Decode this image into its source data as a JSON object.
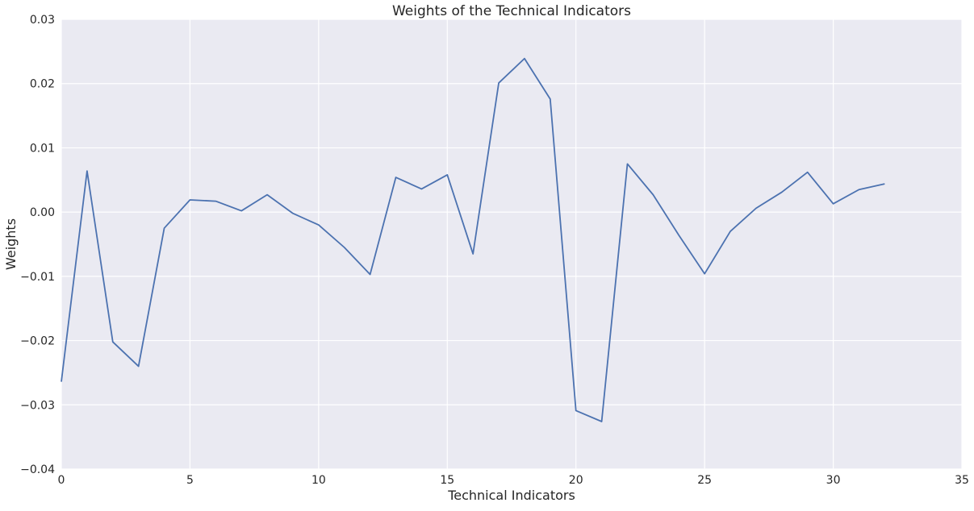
{
  "chart_data": {
    "type": "line",
    "title": "Weights of the Technical Indicators",
    "xlabel": "Technical Indicators",
    "ylabel": "Weights",
    "xlim": [
      0,
      35
    ],
    "ylim": [
      -0.04,
      0.03
    ],
    "xticks": [
      0,
      5,
      10,
      15,
      20,
      25,
      30,
      35
    ],
    "yticks": [
      -0.04,
      -0.03,
      -0.02,
      -0.01,
      0.0,
      0.01,
      0.02,
      0.03
    ],
    "ytick_labels": [
      "−0.04",
      "−0.03",
      "−0.02",
      "−0.01",
      "0.00",
      "0.01",
      "0.02",
      "0.03"
    ],
    "grid": true,
    "background_color": "#eaeaf2",
    "grid_color": "#ffffff",
    "series": [
      {
        "color": "#4c72b0",
        "x": [
          0,
          1,
          2,
          3,
          4,
          5,
          6,
          7,
          8,
          9,
          10,
          11,
          12,
          13,
          14,
          15,
          16,
          17,
          18,
          19,
          20,
          21,
          22,
          23,
          24,
          25,
          26,
          27,
          28,
          29,
          30,
          31,
          32
        ],
        "values": [
          -0.0264,
          0.0064,
          -0.0202,
          -0.024,
          -0.0025,
          0.0019,
          0.0017,
          0.0002,
          0.0027,
          -0.0002,
          -0.002,
          -0.0055,
          -0.0097,
          0.0054,
          0.0036,
          0.0058,
          -0.0065,
          0.0201,
          0.0239,
          0.0176,
          -0.0309,
          -0.0326,
          0.0075,
          0.0027,
          -0.0036,
          -0.0096,
          -0.003,
          0.0006,
          0.0031,
          0.0062,
          0.0013,
          0.0035,
          0.0044
        ]
      }
    ]
  }
}
